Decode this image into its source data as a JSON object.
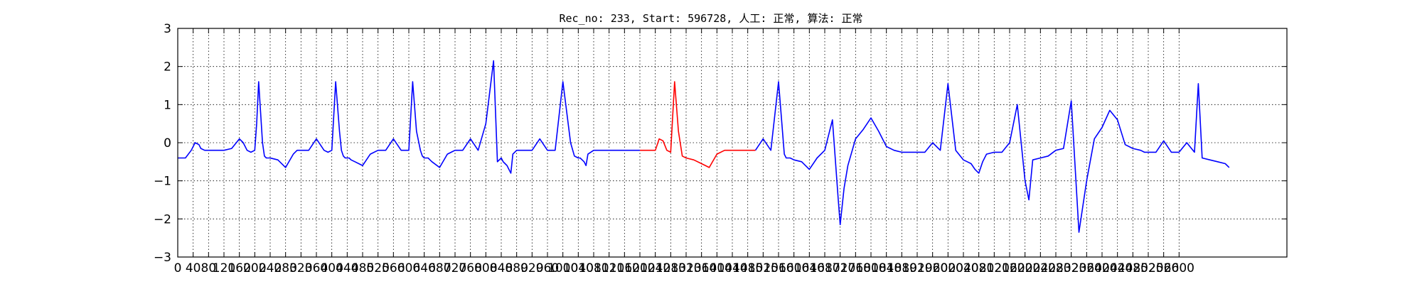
{
  "chart_data": {
    "type": "line",
    "title": "Rec_no: 233, Start: 596728, 人工: 正常, 算法: 正常",
    "xlabel": "",
    "ylabel": "",
    "xlim": [
      0,
      2880
    ],
    "ylim": [
      -3,
      3
    ],
    "grid": true,
    "y_ticks": [
      3,
      2,
      1,
      0,
      -1,
      -2,
      -3
    ],
    "y_tick_labels": [
      "3",
      "2",
      "1",
      "0",
      "−1",
      "−2",
      "−3"
    ],
    "x_ticks": [
      0,
      40,
      80,
      120,
      160,
      200,
      240,
      280,
      320,
      360,
      400,
      440,
      480,
      520,
      560,
      600,
      640,
      680,
      720,
      760,
      800,
      840,
      880,
      920,
      960,
      1000,
      1040,
      1080,
      1120,
      1160,
      1200,
      1240,
      1280,
      1320,
      1360,
      1400,
      1440,
      1480,
      1520,
      1560,
      1600,
      1640,
      1680,
      1720,
      1760,
      1800,
      1840,
      1880,
      1920,
      1960,
      2000,
      2040,
      2080,
      2120,
      2160,
      2200,
      2240,
      2280,
      2320,
      2360,
      2400,
      2440,
      2480,
      2520,
      2560,
      2600
    ],
    "series": [
      {
        "color": "#0000ff",
        "segments": [
          {
            "x": [
              0,
              20,
              35,
              45,
              55,
              60,
              70,
              80,
              90,
              100,
              110,
              120,
              140,
              160,
              170,
              180,
              190,
              200,
              205,
              210,
              215,
              220,
              225,
              230,
              235,
              240,
              260,
              280,
              300,
              310,
              320,
              330,
              340,
              360,
              380,
              390,
              400,
              410,
              420,
              425,
              430,
              435,
              440,
              445,
              450,
              460,
              480,
              500,
              520,
              540,
              560,
              580,
              600,
              610,
              620,
              630,
              635,
              640,
              645,
              650,
              655,
              660,
              680,
              700,
              720,
              730,
              740,
              760,
              780,
              800,
              820,
              830,
              840,
              845,
              850,
              855,
              860,
              865,
              870,
              880,
              900,
              920,
              940,
              960,
              980,
              1000,
              1020,
              1030,
              1040,
              1045,
              1050,
              1055,
              1060,
              1065,
              1080,
              1100,
              1120,
              1140,
              1160,
              1180,
              1200
            ],
            "y": [
              -0.4,
              -0.4,
              -0.2,
              0.0,
              -0.05,
              -0.15,
              -0.2,
              -0.2,
              -0.2,
              -0.2,
              -0.2,
              -0.2,
              -0.15,
              0.1,
              0.0,
              -0.2,
              -0.25,
              -0.2,
              0.5,
              1.6,
              0.8,
              0.0,
              -0.35,
              -0.4,
              -0.4,
              -0.4,
              -0.45,
              -0.65,
              -0.3,
              -0.2,
              -0.2,
              -0.2,
              -0.2,
              0.1,
              -0.2,
              -0.25,
              -0.2,
              1.6,
              0.3,
              -0.2,
              -0.35,
              -0.4,
              -0.4,
              -0.4,
              -0.45,
              -0.5,
              -0.6,
              -0.3,
              -0.2,
              -0.2,
              0.1,
              -0.2,
              -0.2,
              1.6,
              0.3,
              -0.2,
              -0.35,
              -0.4,
              -0.4,
              -0.4,
              -0.45,
              -0.5,
              -0.65,
              -0.3,
              -0.2,
              -0.2,
              -0.2,
              0.1,
              -0.2,
              0.5,
              2.15,
              -0.5,
              -0.4,
              -0.5,
              -0.55,
              -0.6,
              -0.7,
              -0.8,
              -0.3,
              -0.2,
              -0.2,
              -0.2,
              0.1,
              -0.2,
              -0.2,
              1.6,
              0.0,
              -0.35,
              -0.4,
              -0.4,
              -0.45,
              -0.5,
              -0.6,
              -0.3,
              -0.2,
              -0.2,
              -0.2,
              -0.2,
              -0.2,
              -0.2,
              -0.2
            ]
          },
          {
            "x": [
              1500,
              1520,
              1540,
              1560,
              1575,
              1580,
              1590,
              1600,
              1620,
              1640,
              1660,
              1680,
              1700,
              1715,
              1720,
              1730,
              1740,
              1760,
              1780,
              1800,
              1820,
              1840,
              1860,
              1880,
              1900,
              1920,
              1940,
              1960,
              1980,
              2000,
              2020,
              2040,
              2050,
              2060,
              2070,
              2080,
              2090,
              2100,
              2120,
              2140,
              2160,
              2180,
              2200,
              2210,
              2220,
              2240,
              2260,
              2280,
              2300,
              2320,
              2340,
              2360,
              2380,
              2400,
              2420,
              2440,
              2460,
              2480,
              2500,
              2510,
              2520,
              2530,
              2540,
              2560,
              2580,
              2600
            ],
            "y": [
              -0.2,
              0.1,
              -0.2,
              1.6,
              -0.3,
              -0.4,
              -0.4,
              -0.45,
              -0.5,
              -0.7,
              -0.4,
              -0.2,
              0.6,
              -1.5,
              -2.15,
              -1.2,
              -0.6,
              0.1,
              0.35,
              0.65,
              0.3,
              -0.1,
              -0.2,
              -0.25,
              -0.25,
              -0.25,
              -0.25,
              0.0,
              -0.2,
              1.55,
              -0.2,
              -0.45,
              -0.5,
              -0.55,
              -0.7,
              -0.8,
              -0.5,
              -0.3,
              -0.25,
              -0.25,
              0.0,
              1.0,
              -1.0,
              -1.5,
              -0.45,
              -0.4,
              -0.35,
              -0.2,
              -0.15,
              1.1,
              -2.35,
              -1.0,
              0.1,
              0.4,
              0.85,
              0.6,
              -0.05,
              -0.15,
              -0.2,
              -0.25,
              -0.25,
              -0.25,
              -0.25,
              0.05,
              -0.25,
              -0.25
            ]
          },
          {
            "x": [
              2600,
              2620,
              2640,
              2650,
              2660,
              2680,
              2700,
              2720,
              2730
            ],
            "y": [
              -0.25,
              0.0,
              -0.25,
              1.55,
              -0.4,
              -0.45,
              -0.5,
              -0.55,
              -0.65
            ]
          }
        ]
      },
      {
        "color": "#ff0000",
        "segments": [
          {
            "x": [
              1200,
              1220,
              1240,
              1250,
              1260,
              1270,
              1280,
              1290,
              1300,
              1310,
              1320,
              1340,
              1360,
              1380,
              1400,
              1420,
              1440,
              1460,
              1480,
              1500
            ],
            "y": [
              -0.2,
              -0.2,
              -0.2,
              0.1,
              0.05,
              -0.2,
              -0.25,
              1.6,
              0.3,
              -0.35,
              -0.4,
              -0.45,
              -0.55,
              -0.65,
              -0.3,
              -0.2,
              -0.2,
              -0.2,
              -0.2,
              -0.2
            ]
          }
        ]
      }
    ]
  }
}
